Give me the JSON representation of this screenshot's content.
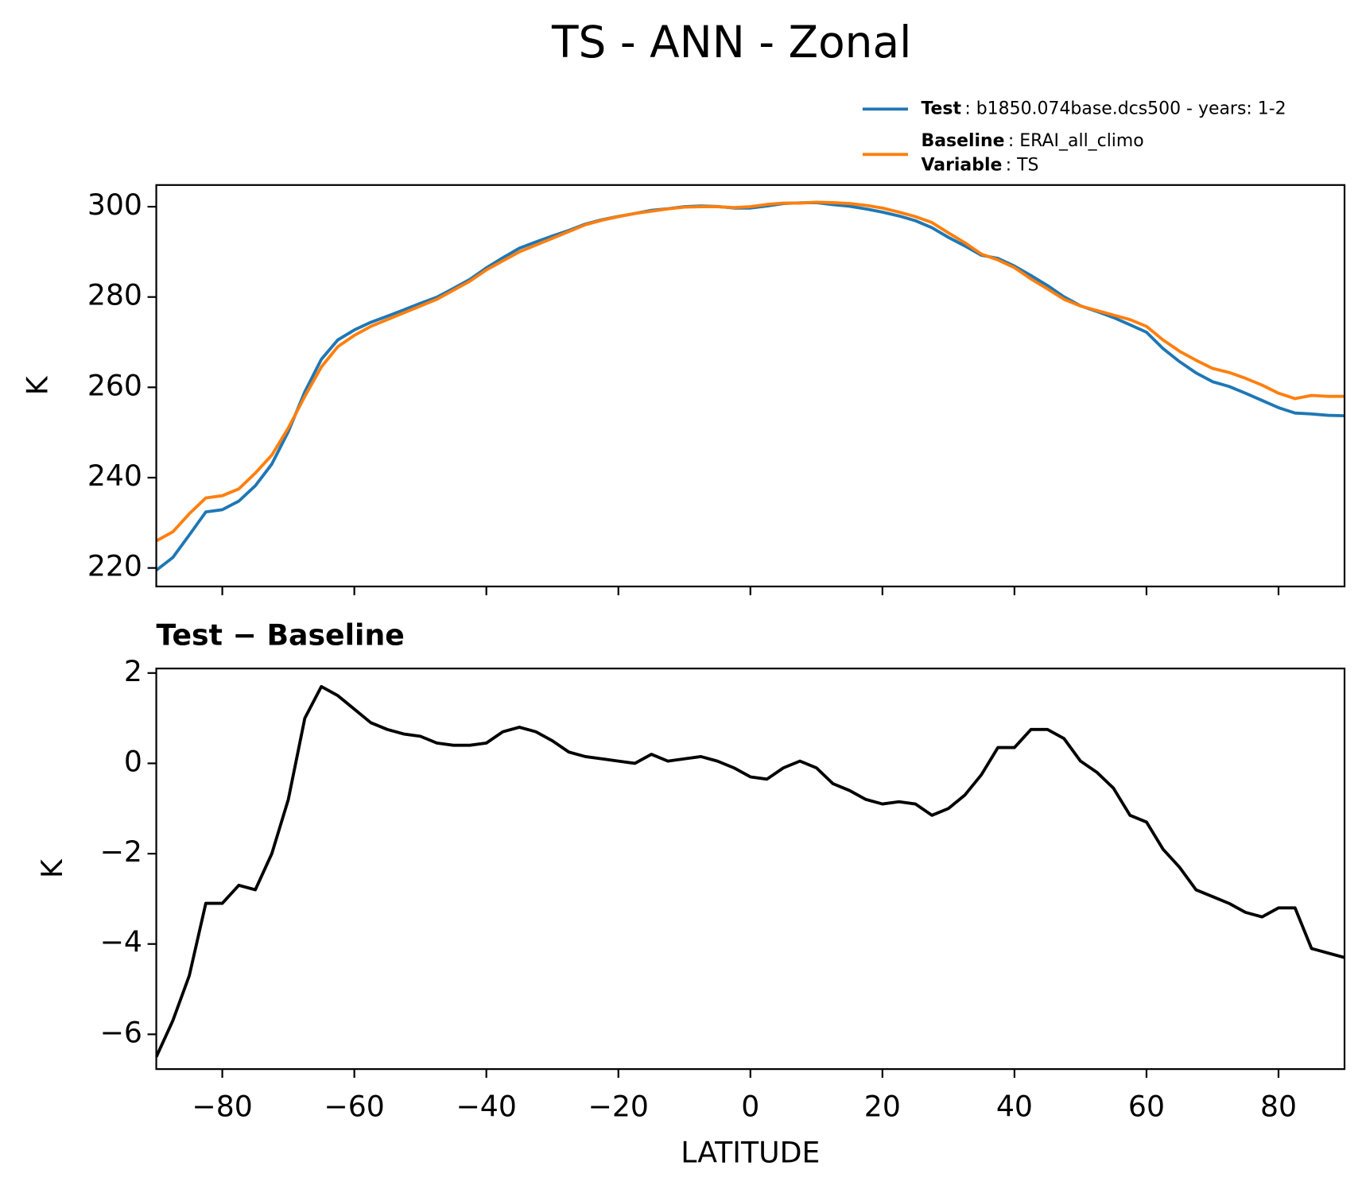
{
  "title": "TS - ANN - Zonal",
  "chart_data": [
    {
      "type": "line",
      "ylabel": "K",
      "x": [
        -90,
        -87.5,
        -85,
        -82.5,
        -80,
        -77.5,
        -75,
        -72.5,
        -70,
        -67.5,
        -65,
        -62.5,
        -60,
        -57.5,
        -55,
        -52.5,
        -50,
        -47.5,
        -45,
        -42.5,
        -40,
        -37.5,
        -35,
        -32.5,
        -30,
        -27.5,
        -25,
        -22.5,
        -20,
        -17.5,
        -15,
        -12.5,
        -10,
        -7.5,
        -5,
        -2.5,
        0,
        2.5,
        5,
        7.5,
        10,
        12.5,
        15,
        17.5,
        20,
        22.5,
        25,
        27.5,
        30,
        32.5,
        35,
        37.5,
        40,
        42.5,
        45,
        47.5,
        50,
        52.5,
        55,
        57.5,
        60,
        62.5,
        65,
        67.5,
        70,
        72.5,
        75,
        77.5,
        80,
        82.5,
        85,
        87.5,
        90
      ],
      "series": [
        {
          "name": "Test",
          "detail": ": b1850.074base.dcs500 - years: 1-2",
          "color": "#1f77b4",
          "values": [
            219.5,
            222.3,
            227.3,
            232.4,
            232.9,
            234.8,
            238.2,
            243,
            250.2,
            259,
            266.2,
            270.5,
            272.7,
            274.4,
            275.75,
            277.15,
            278.6,
            279.95,
            281.9,
            283.9,
            286.45,
            288.7,
            290.8,
            292.2,
            293.5,
            294.75,
            296.15,
            297.1,
            297.85,
            298.5,
            299.2,
            299.55,
            300,
            300.15,
            300.05,
            299.7,
            299.7,
            300.15,
            300.7,
            300.85,
            300.9,
            300.45,
            300.1,
            299.5,
            298.8,
            297.95,
            296.9,
            295.35,
            293.2,
            291.3,
            289.25,
            288.55,
            286.85,
            284.75,
            282.55,
            280.05,
            278.05,
            276.8,
            275.45,
            273.85,
            272.2,
            268.6,
            265.7,
            263.2,
            261.25,
            260.2,
            258.7,
            257.1,
            255.5,
            254.3,
            254.1,
            253.8,
            253.7
          ]
        },
        {
          "name": "Baseline",
          "detail": ": ERAI_all_climo",
          "color": "#ff7f0e",
          "values": [
            226,
            228,
            232,
            235.5,
            236,
            237.5,
            241,
            245,
            251,
            258,
            264.5,
            269,
            271.5,
            273.5,
            275,
            276.5,
            278,
            279.5,
            281.5,
            283.5,
            286,
            288,
            290,
            291.5,
            293,
            294.5,
            296,
            297,
            297.8,
            298.5,
            299,
            299.5,
            299.9,
            300,
            300,
            299.8,
            300,
            300.5,
            300.8,
            300.8,
            301,
            300.9,
            300.7,
            300.3,
            299.7,
            298.8,
            297.8,
            296.5,
            294.2,
            292,
            289.5,
            288.2,
            286.5,
            284,
            281.8,
            279.5,
            278,
            277,
            276,
            275,
            273.5,
            270.5,
            268,
            266,
            264.2,
            263.3,
            262,
            260.5,
            258.7,
            257.5,
            258.2,
            258,
            258
          ]
        }
      ],
      "legend_extra": {
        "name": "Variable",
        "detail": ": TS"
      },
      "xlim": [
        -90,
        90
      ],
      "xticks": [
        -80,
        -60,
        -40,
        -20,
        0,
        20,
        40,
        60,
        80
      ],
      "ylim": [
        215.9,
        304.8
      ],
      "yticks": [
        220,
        240,
        260,
        280,
        300
      ]
    },
    {
      "type": "line",
      "title": "Test − Baseline",
      "xlabel": "LATITUDE",
      "ylabel": "K",
      "color": "#000000",
      "x": [
        -90,
        -87.5,
        -85,
        -82.5,
        -80,
        -77.5,
        -75,
        -72.5,
        -70,
        -67.5,
        -65,
        -62.5,
        -60,
        -57.5,
        -55,
        -52.5,
        -50,
        -47.5,
        -45,
        -42.5,
        -40,
        -37.5,
        -35,
        -32.5,
        -30,
        -27.5,
        -25,
        -22.5,
        -20,
        -17.5,
        -15,
        -12.5,
        -10,
        -7.5,
        -5,
        -2.5,
        0,
        2.5,
        5,
        7.5,
        10,
        12.5,
        15,
        17.5,
        20,
        22.5,
        25,
        27.5,
        30,
        32.5,
        35,
        37.5,
        40,
        42.5,
        45,
        47.5,
        50,
        52.5,
        55,
        57.5,
        60,
        62.5,
        65,
        67.5,
        70,
        72.5,
        75,
        77.5,
        80,
        82.5,
        85,
        87.5,
        90
      ],
      "values": [
        -6.5,
        -5.7,
        -4.7,
        -3.1,
        -3.1,
        -2.7,
        -2.8,
        -2.0,
        -0.8,
        1.0,
        1.7,
        1.5,
        1.2,
        0.9,
        0.75,
        0.65,
        0.6,
        0.45,
        0.4,
        0.4,
        0.45,
        0.7,
        0.8,
        0.7,
        0.5,
        0.25,
        0.15,
        0.1,
        0.05,
        0.0,
        0.2,
        0.05,
        0.1,
        0.15,
        0.05,
        -0.1,
        -0.3,
        -0.35,
        -0.1,
        0.05,
        -0.1,
        -0.45,
        -0.6,
        -0.8,
        -0.9,
        -0.85,
        -0.9,
        -1.15,
        -1.0,
        -0.7,
        -0.25,
        0.35,
        0.35,
        0.75,
        0.75,
        0.55,
        0.05,
        -0.2,
        -0.55,
        -1.15,
        -1.3,
        -1.9,
        -2.3,
        -2.8,
        -2.95,
        -3.1,
        -3.3,
        -3.4,
        -3.2,
        -3.2,
        -4.1,
        -4.2,
        -4.3
      ],
      "xlim": [
        -90,
        90
      ],
      "xticks": [
        {
          "value": -80,
          "label": "−80"
        },
        {
          "value": -60,
          "label": "−60"
        },
        {
          "value": -40,
          "label": "−40"
        },
        {
          "value": -20,
          "label": "−20"
        },
        0,
        20,
        40,
        60,
        80
      ],
      "ylim": [
        -6.77,
        2.1
      ],
      "yticks": [
        {
          "value": -6,
          "label": "−6"
        },
        {
          "value": -4,
          "label": "−4"
        },
        {
          "value": -2,
          "label": "−2"
        },
        0,
        2
      ]
    }
  ]
}
